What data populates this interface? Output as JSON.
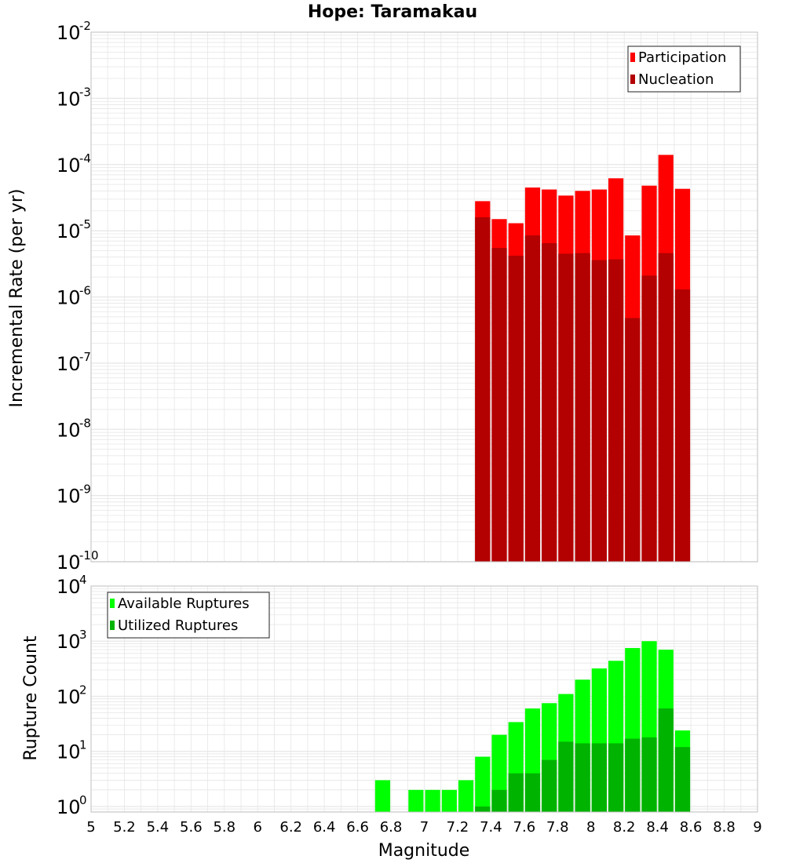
{
  "title": "Hope: Taramakau",
  "xlabel": "Magnitude",
  "x_ticks": [
    "5",
    "5.2",
    "5.4",
    "5.6",
    "5.8",
    "6",
    "6.2",
    "6.4",
    "6.6",
    "6.8",
    "7",
    "7.2",
    "7.4",
    "7.6",
    "7.8",
    "8",
    "8.2",
    "8.4",
    "8.6",
    "8.8",
    "9"
  ],
  "colors": {
    "participation": "#ff0000",
    "nucleation": "#b30000",
    "available": "#00ff00",
    "utilized": "#00b300",
    "grid": "#e6e6e6",
    "frame": "#bfbfbf"
  },
  "chart_data": [
    {
      "type": "bar",
      "scale": "log",
      "ylabel": "Incremental Rate (per yr)",
      "xlim": [
        5,
        9
      ],
      "ylim_exp": [
        -10,
        -2
      ],
      "y_ticks": [
        {
          "base": "10",
          "exp": "-2"
        },
        {
          "base": "10",
          "exp": "-3"
        },
        {
          "base": "10",
          "exp": "-4"
        },
        {
          "base": "10",
          "exp": "-5"
        },
        {
          "base": "10",
          "exp": "-6"
        },
        {
          "base": "10",
          "exp": "-7"
        },
        {
          "base": "10",
          "exp": "-8"
        },
        {
          "base": "10",
          "exp": "-9"
        },
        {
          "base": "10",
          "exp": "-10"
        }
      ],
      "legend": [
        "Participation",
        "Nucleation"
      ],
      "legend_position": "top-right",
      "x": [
        7.35,
        7.45,
        7.55,
        7.65,
        7.75,
        7.85,
        7.95,
        8.05,
        8.15,
        8.25,
        8.35,
        8.45,
        8.55
      ],
      "series": [
        {
          "name": "Participation",
          "values": [
            2.8e-05,
            1.5e-05,
            1.3e-05,
            4.5e-05,
            4.2e-05,
            3.4e-05,
            4e-05,
            4.2e-05,
            6.2e-05,
            8.5e-06,
            4.8e-05,
            0.00014,
            4.3e-05
          ]
        },
        {
          "name": "Nucleation",
          "values": [
            1.6e-05,
            5.5e-06,
            4.2e-06,
            8.5e-06,
            6.5e-06,
            4.5e-06,
            4.6e-06,
            3.6e-06,
            3.7e-06,
            4.8e-07,
            2.1e-06,
            4.6e-06,
            1.3e-06
          ]
        }
      ]
    },
    {
      "type": "bar",
      "scale": "log",
      "ylabel": "Rupture Count",
      "xlabel": "Magnitude",
      "xlim": [
        5,
        9
      ],
      "ylim_exp": [
        -0.1,
        4
      ],
      "y_ticks": [
        {
          "base": "10",
          "exp": "4"
        },
        {
          "base": "10",
          "exp": "3"
        },
        {
          "base": "10",
          "exp": "2"
        },
        {
          "base": "10",
          "exp": "1"
        },
        {
          "base": "10",
          "exp": "0"
        }
      ],
      "legend": [
        "Available Ruptures",
        "Utilized Ruptures"
      ],
      "legend_position": "top-left",
      "x": [
        6.75,
        6.95,
        7.05,
        7.15,
        7.25,
        7.35,
        7.45,
        7.55,
        7.65,
        7.75,
        7.85,
        7.95,
        8.05,
        8.15,
        8.25,
        8.35,
        8.45,
        8.55
      ],
      "series": [
        {
          "name": "Available Ruptures",
          "values": [
            3,
            2,
            2,
            2,
            3,
            8,
            20,
            34,
            60,
            75,
            110,
            200,
            320,
            440,
            750,
            1000,
            700,
            24
          ]
        },
        {
          "name": "Utilized Ruptures",
          "values": [
            0,
            0,
            0,
            0,
            0,
            1,
            2,
            4,
            4,
            7,
            15,
            14,
            14,
            14,
            17,
            18,
            60,
            12
          ]
        }
      ]
    }
  ]
}
